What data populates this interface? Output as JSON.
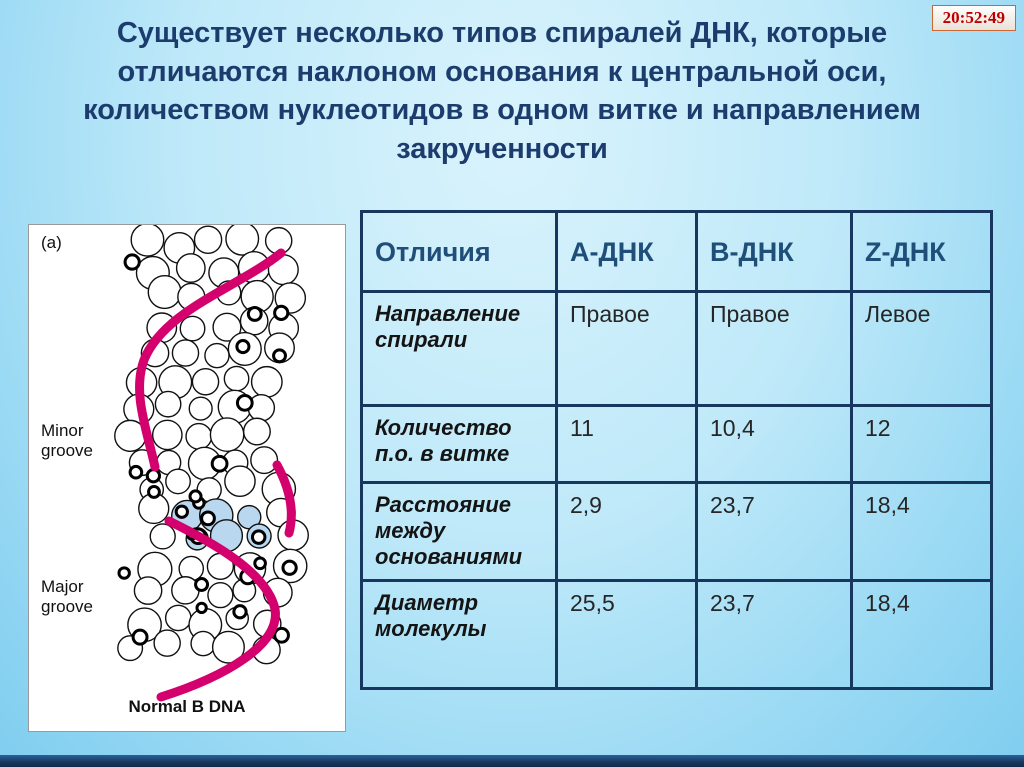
{
  "clock": {
    "time": "20:52:49"
  },
  "title": "Существует несколько типов спиралей ДНК, которые отличаются наклоном основания к центральной оси, количеством нуклеотидов в одном витке и направлением закрученности",
  "figure": {
    "label_a": "(a)",
    "minor_groove_label": "Minor groove",
    "major_groove_label": "Major groove",
    "caption": "Normal B DNA"
  },
  "table": {
    "headers": [
      "Отличия",
      "А-ДНК",
      "В-ДНК",
      "Z-ДНК"
    ],
    "rows": [
      {
        "label": "Направление спирали",
        "values": [
          "Правое",
          "Правое",
          "Левое"
        ]
      },
      {
        "label": "Количество п.о. в витке",
        "values": [
          "11",
          "10,4",
          "12"
        ]
      },
      {
        "label": "Расстояние между основаниями",
        "values": [
          "2,9",
          "23,7",
          "18,4"
        ]
      },
      {
        "label": "Диаметр молекулы",
        "values": [
          "25,5",
          "23,7",
          "18,4"
        ]
      }
    ]
  },
  "colors": {
    "title_text": "#1c3c6e",
    "table_border": "#17375e",
    "header_text": "#1f4e79",
    "clock_text": "#c00000",
    "clock_border": "#cc6633",
    "ribbon": "#d4006e",
    "blue_spheres": "#b9d7ee",
    "background_top": "#d9f3fc",
    "background_bottom": "#7fcdef",
    "bottom_bar": "#17375e"
  }
}
